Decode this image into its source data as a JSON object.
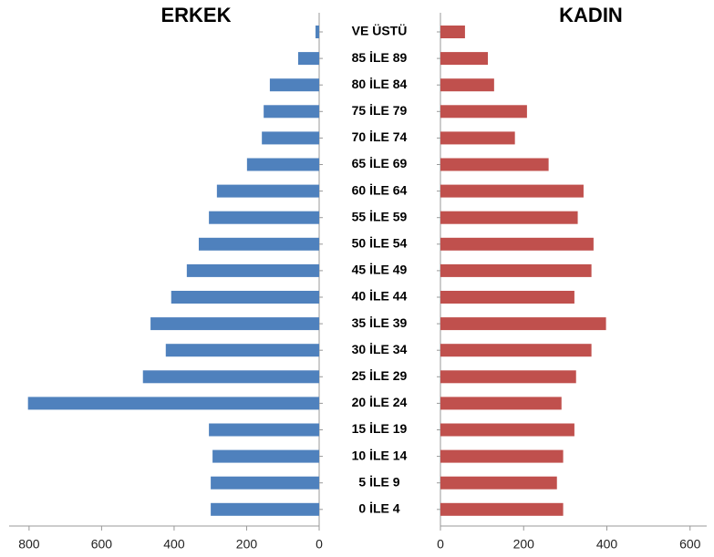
{
  "chart_data": {
    "type": "bar",
    "orientation": "horizontal",
    "categories": [
      "VE ÜSTÜ",
      "85 İLE 89",
      "80 İLE 84",
      "75 İLE 79",
      "70 İLE 74",
      "65 İLE 69",
      "60 İLE 64",
      "55 İLE 59",
      "50 İLE 54",
      "45 İLE 49",
      "40 İLE 44",
      "35 İLE 39",
      "30 İLE 34",
      "25 İLE 29",
      "20 İLE 24",
      "15 İLE 19",
      "10 İLE 14",
      "5 İLE 9",
      "0 İLE 4"
    ],
    "series": [
      {
        "name": "ERKEK",
        "color": "#4f81bd",
        "reversed": true,
        "xlim": [
          0,
          855
        ],
        "xticks": [
          0,
          200,
          400,
          600,
          800
        ],
        "values": [
          10,
          58,
          136,
          153,
          158,
          199,
          282,
          304,
          332,
          365,
          408,
          465,
          423,
          486,
          803,
          304,
          294,
          299,
          299
        ]
      },
      {
        "name": "KADIN",
        "color": "#c0504d",
        "reversed": false,
        "xlim": [
          0,
          640
        ],
        "xticks": [
          0,
          200,
          400,
          600
        ],
        "values": [
          59,
          114,
          129,
          208,
          179,
          260,
          344,
          330,
          368,
          363,
          322,
          398,
          363,
          326,
          291,
          322,
          295,
          280,
          295
        ]
      }
    ]
  }
}
